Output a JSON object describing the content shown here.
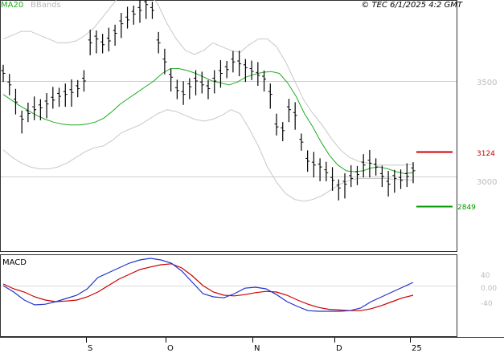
{
  "header": {
    "legend_ma": "MA20",
    "legend_bbands": "BBands",
    "copyright": "© TEC 6/1/2025 4:2 GMT"
  },
  "colors": {
    "price": "#000000",
    "ma20": "#22aa22",
    "bbands": "#c8c8c8",
    "resistance": "#cc0000",
    "support": "#009900",
    "macd_line": "#2233cc",
    "signal_line": "#cc0000",
    "grid": "#cfcfcf"
  },
  "chart_data": [
    {
      "type": "ohlc",
      "title": "",
      "x_ticks": [
        "S",
        "O",
        "N",
        "D",
        "25"
      ],
      "y_ticks": [
        "3500",
        "3000"
      ],
      "ylim": [
        2560,
        4050
      ],
      "grid": true,
      "legend": "top-left",
      "levels": [
        {
          "name": "resistance",
          "label": "3124",
          "value": 3124
        },
        {
          "name": "support",
          "label": "2849",
          "value": 2849
        }
      ],
      "series": [
        {
          "name": "MA20",
          "values": [
            3430,
            3400,
            3370,
            3345,
            3320,
            3300,
            3285,
            3275,
            3270,
            3270,
            3275,
            3285,
            3305,
            3340,
            3380,
            3410,
            3440,
            3470,
            3500,
            3540,
            3565,
            3565,
            3555,
            3540,
            3520,
            3500,
            3490,
            3480,
            3495,
            3520,
            3535,
            3545,
            3550,
            3540,
            3490,
            3420,
            3330,
            3260,
            3180,
            3110,
            3060,
            3030,
            3025,
            3030,
            3045,
            3050,
            3040,
            3025,
            3015,
            3020
          ]
        },
        {
          "name": "BBands",
          "upper": [
            3720,
            3740,
            3760,
            3760,
            3740,
            3720,
            3700,
            3700,
            3710,
            3740,
            3780,
            3840,
            3900,
            3960,
            4000,
            4000,
            3960,
            3900,
            3800,
            3720,
            3660,
            3640,
            3660,
            3700,
            3680,
            3660,
            3650,
            3690,
            3720,
            3720,
            3680,
            3600,
            3500,
            3400,
            3330,
            3270,
            3200,
            3140,
            3100,
            3080,
            3070,
            3060,
            3060,
            3060,
            3060,
            3065
          ],
          "lower": [
            3140,
            3100,
            3070,
            3050,
            3040,
            3040,
            3050,
            3070,
            3100,
            3130,
            3150,
            3160,
            3190,
            3230,
            3250,
            3270,
            3300,
            3330,
            3350,
            3340,
            3320,
            3300,
            3290,
            3300,
            3320,
            3350,
            3330,
            3250,
            3160,
            3050,
            2970,
            2910,
            2880,
            2870,
            2880,
            2900,
            2930,
            2960,
            2980,
            2990,
            2990,
            2990,
            2990,
            2985,
            2985,
            2980
          ]
        }
      ]
    },
    {
      "type": "line",
      "title": "MACD",
      "y_ticks": [
        "40",
        "0.00",
        "-40"
      ],
      "x_ticks": [
        "S",
        "O",
        "N",
        "D",
        "25"
      ],
      "series": [
        {
          "name": "MACD",
          "values": [
            0,
            -20,
            -45,
            -60,
            -58,
            -50,
            -40,
            -30,
            -10,
            25,
            40,
            55,
            70,
            80,
            85,
            80,
            70,
            45,
            10,
            -25,
            -35,
            -38,
            -25,
            -8,
            -5,
            -10,
            -28,
            -50,
            -65,
            -78,
            -80,
            -80,
            -80,
            -78,
            -70,
            -50,
            -35,
            -20,
            -5,
            10
          ]
        },
        {
          "name": "Signal",
          "values": [
            5,
            -10,
            -20,
            -35,
            -45,
            -50,
            -48,
            -45,
            -35,
            -20,
            0,
            20,
            35,
            50,
            58,
            65,
            68,
            55,
            30,
            0,
            -20,
            -30,
            -32,
            -28,
            -22,
            -18,
            -20,
            -30,
            -45,
            -58,
            -68,
            -74,
            -76,
            -78,
            -78,
            -72,
            -62,
            -50,
            -38,
            -30
          ]
        }
      ]
    }
  ]
}
